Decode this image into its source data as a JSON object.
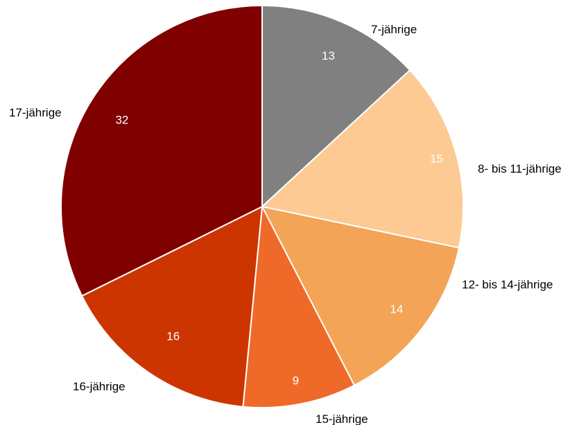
{
  "chart_data": {
    "type": "pie",
    "categories": [
      "7-jährige",
      "8- bis 11-jährige",
      "12- bis 14-jährige",
      "15-jährige",
      "16-jährige",
      "17-jährige"
    ],
    "values": [
      13,
      15,
      14,
      9,
      16,
      32
    ],
    "value_labels": [
      "13",
      "15",
      "14",
      "9",
      "16",
      "32"
    ],
    "colors": [
      "#808080",
      "#fdca94",
      "#f3a456",
      "#ef6a28",
      "#cd3500",
      "#800000"
    ],
    "start_angle": "12 o'clock",
    "direction": "clockwise",
    "legend": "none (labels beside slices)"
  }
}
